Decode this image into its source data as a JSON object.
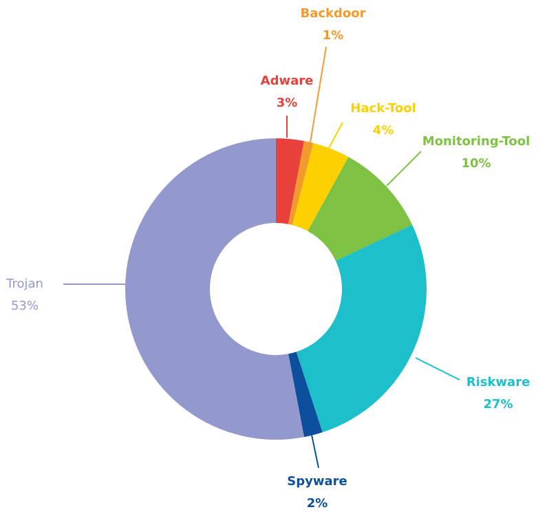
{
  "chart_data": {
    "type": "donut",
    "categories": [
      "Adware",
      "Backdoor",
      "Hack-Tool",
      "Monitoring-Tool",
      "Riskware",
      "Spyware",
      "Trojan"
    ],
    "values": [
      3,
      1,
      4,
      10,
      27,
      2,
      53
    ],
    "value_labels": [
      "3%",
      "1%",
      "4%",
      "10%",
      "27%",
      "2%",
      "53%"
    ],
    "colors": [
      "#e8403a",
      "#f39a2d",
      "#fdd000",
      "#7dc243",
      "#1dbfcb",
      "#0c4f9c",
      "#9499cd"
    ]
  }
}
